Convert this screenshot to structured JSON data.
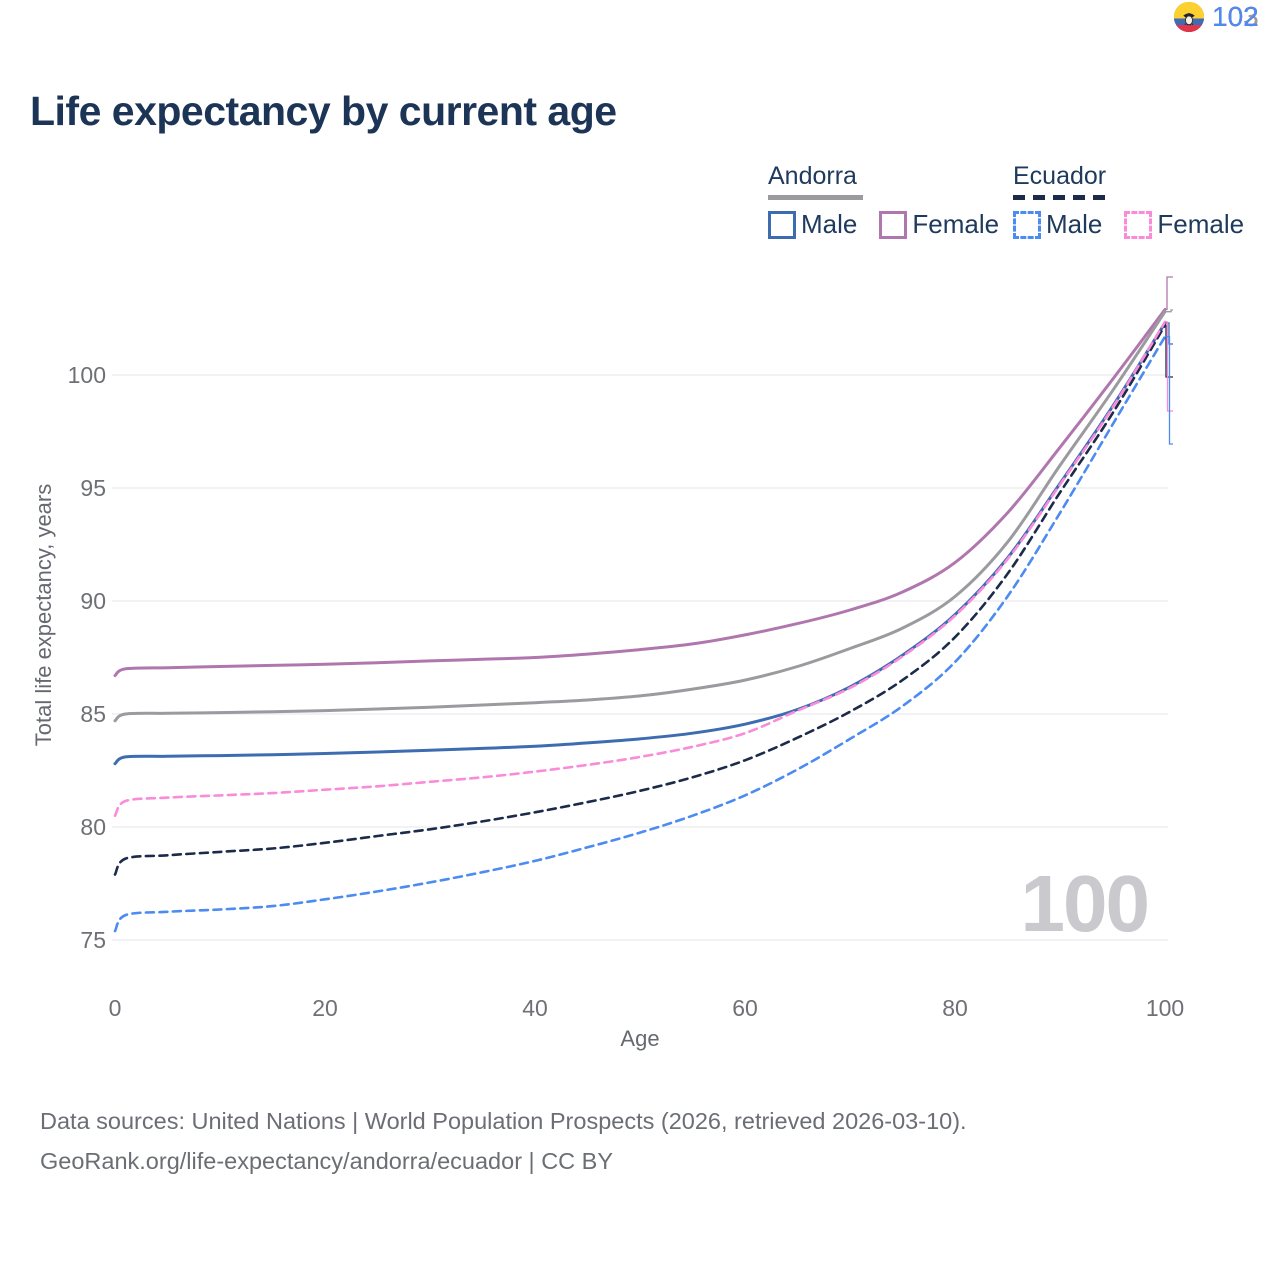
{
  "header": {
    "title": "Life expectancy by current age"
  },
  "legend": {
    "groups": [
      {
        "country": "Andorra",
        "line_style": "solid",
        "underline_color": "#9b9b9f",
        "items": [
          {
            "label": "Male",
            "color": "#3e6cb0"
          },
          {
            "label": "Female",
            "color": "#b077ae"
          }
        ]
      },
      {
        "country": "Ecuador",
        "line_style": "dashed",
        "underline_color": "#1c2b49",
        "items": [
          {
            "label": "Male",
            "color": "#4b8bf2"
          },
          {
            "label": "Female",
            "color": "#f98bd9"
          }
        ]
      }
    ]
  },
  "end_labels": [
    {
      "value": "103",
      "flag": "andorra",
      "color": "#b077ae"
    },
    {
      "value": "103",
      "flag": "andorra",
      "color": "#9b9b9f"
    },
    {
      "value": "102",
      "flag": "andorra",
      "color": "#3e6cb0"
    },
    {
      "value": "102",
      "flag": "ecuador",
      "color": "#1c2b49"
    },
    {
      "value": "102",
      "flag": "ecuador",
      "color": "#f98bd9"
    },
    {
      "value": "102",
      "flag": "ecuador",
      "color": "#4b8bf2"
    }
  ],
  "watermark": {
    "age_indicator": "100"
  },
  "colors": {
    "title": "#1c3557",
    "grid": "#e9e9ed",
    "axis_text": "#6e7076",
    "watermark": "#c9c9ce",
    "flag_andorra": [
      "#4a72b2",
      "#fcd045",
      "#d5293d"
    ],
    "flag_ecuador": [
      "#fcd12f",
      "#3f6cb5",
      "#e0354a"
    ]
  },
  "chart_data": {
    "type": "line",
    "title": "Life expectancy by current age",
    "xlabel": "Age",
    "ylabel": "Total life expectancy, years",
    "xlim": [
      0,
      100
    ],
    "ylim": [
      75,
      103
    ],
    "xticks": [
      0,
      20,
      40,
      60,
      80,
      100
    ],
    "yticks": [
      75,
      80,
      85,
      90,
      95,
      100
    ],
    "grid": "horizontal-only",
    "legend_position": "top-right",
    "series": [
      {
        "name": "Andorra Female",
        "country": "Andorra",
        "sex": "female",
        "color": "#b077ae",
        "dash": false,
        "end_label": 103,
        "points": [
          [
            0,
            86.7
          ],
          [
            1,
            87.0
          ],
          [
            5,
            87.05
          ],
          [
            10,
            87.1
          ],
          [
            15,
            87.15
          ],
          [
            20,
            87.2
          ],
          [
            25,
            87.27
          ],
          [
            30,
            87.35
          ],
          [
            35,
            87.42
          ],
          [
            40,
            87.5
          ],
          [
            45,
            87.65
          ],
          [
            50,
            87.85
          ],
          [
            55,
            88.1
          ],
          [
            60,
            88.5
          ],
          [
            65,
            89.0
          ],
          [
            70,
            89.6
          ],
          [
            75,
            90.4
          ],
          [
            80,
            91.7
          ],
          [
            85,
            93.9
          ],
          [
            90,
            96.8
          ],
          [
            95,
            99.8
          ],
          [
            100,
            102.9
          ]
        ]
      },
      {
        "name": "Andorra Both sexes",
        "country": "Andorra",
        "sex": "all",
        "color": "#9b9b9f",
        "dash": false,
        "end_label": 103,
        "points": [
          [
            0,
            84.7
          ],
          [
            1,
            85.0
          ],
          [
            5,
            85.03
          ],
          [
            10,
            85.06
          ],
          [
            15,
            85.1
          ],
          [
            20,
            85.15
          ],
          [
            25,
            85.22
          ],
          [
            30,
            85.3
          ],
          [
            35,
            85.4
          ],
          [
            40,
            85.5
          ],
          [
            45,
            85.62
          ],
          [
            50,
            85.8
          ],
          [
            55,
            86.1
          ],
          [
            60,
            86.5
          ],
          [
            65,
            87.1
          ],
          [
            70,
            87.9
          ],
          [
            75,
            88.8
          ],
          [
            80,
            90.2
          ],
          [
            85,
            92.6
          ],
          [
            90,
            96.0
          ],
          [
            95,
            99.3
          ],
          [
            100,
            102.8
          ]
        ]
      },
      {
        "name": "Andorra Male",
        "country": "Andorra",
        "sex": "male",
        "color": "#3e6cb0",
        "dash": false,
        "end_label": 102,
        "points": [
          [
            0,
            82.8
          ],
          [
            1,
            83.1
          ],
          [
            5,
            83.13
          ],
          [
            10,
            83.16
          ],
          [
            15,
            83.2
          ],
          [
            20,
            83.25
          ],
          [
            25,
            83.32
          ],
          [
            30,
            83.4
          ],
          [
            35,
            83.48
          ],
          [
            40,
            83.57
          ],
          [
            45,
            83.72
          ],
          [
            50,
            83.9
          ],
          [
            55,
            84.15
          ],
          [
            60,
            84.55
          ],
          [
            65,
            85.2
          ],
          [
            70,
            86.2
          ],
          [
            75,
            87.6
          ],
          [
            80,
            89.4
          ],
          [
            85,
            91.9
          ],
          [
            90,
            95.2
          ],
          [
            95,
            98.6
          ],
          [
            100,
            102.3
          ]
        ]
      },
      {
        "name": "Ecuador Both sexes",
        "country": "Ecuador",
        "sex": "all",
        "color": "#1c2b49",
        "dash": true,
        "end_label": 102,
        "points": [
          [
            0,
            77.9
          ],
          [
            1,
            78.6
          ],
          [
            5,
            78.75
          ],
          [
            10,
            78.9
          ],
          [
            15,
            79.05
          ],
          [
            20,
            79.3
          ],
          [
            25,
            79.6
          ],
          [
            30,
            79.9
          ],
          [
            35,
            80.25
          ],
          [
            40,
            80.65
          ],
          [
            45,
            81.1
          ],
          [
            50,
            81.6
          ],
          [
            55,
            82.2
          ],
          [
            60,
            82.95
          ],
          [
            65,
            83.95
          ],
          [
            70,
            85.1
          ],
          [
            75,
            86.5
          ],
          [
            80,
            88.4
          ],
          [
            85,
            91.2
          ],
          [
            90,
            94.8
          ],
          [
            95,
            98.3
          ],
          [
            100,
            102.2
          ]
        ]
      },
      {
        "name": "Ecuador Female",
        "country": "Ecuador",
        "sex": "female",
        "color": "#f98bd9",
        "dash": true,
        "end_label": 102,
        "points": [
          [
            0,
            80.5
          ],
          [
            1,
            81.15
          ],
          [
            5,
            81.3
          ],
          [
            10,
            81.4
          ],
          [
            15,
            81.5
          ],
          [
            20,
            81.65
          ],
          [
            25,
            81.8
          ],
          [
            30,
            82.0
          ],
          [
            35,
            82.2
          ],
          [
            40,
            82.45
          ],
          [
            45,
            82.75
          ],
          [
            50,
            83.1
          ],
          [
            55,
            83.55
          ],
          [
            60,
            84.15
          ],
          [
            65,
            85.15
          ],
          [
            70,
            86.15
          ],
          [
            75,
            87.55
          ],
          [
            80,
            89.35
          ],
          [
            85,
            91.85
          ],
          [
            90,
            95.15
          ],
          [
            95,
            98.55
          ],
          [
            100,
            102.35
          ]
        ]
      },
      {
        "name": "Ecuador Male",
        "country": "Ecuador",
        "sex": "male",
        "color": "#4b8bf2",
        "dash": true,
        "end_label": 102,
        "points": [
          [
            0,
            75.4
          ],
          [
            1,
            76.1
          ],
          [
            5,
            76.25
          ],
          [
            10,
            76.35
          ],
          [
            15,
            76.5
          ],
          [
            20,
            76.8
          ],
          [
            25,
            77.15
          ],
          [
            30,
            77.55
          ],
          [
            35,
            78.0
          ],
          [
            40,
            78.5
          ],
          [
            45,
            79.1
          ],
          [
            50,
            79.75
          ],
          [
            55,
            80.5
          ],
          [
            60,
            81.4
          ],
          [
            65,
            82.55
          ],
          [
            70,
            83.9
          ],
          [
            75,
            85.35
          ],
          [
            80,
            87.3
          ],
          [
            85,
            90.2
          ],
          [
            90,
            93.9
          ],
          [
            95,
            97.8
          ],
          [
            100,
            101.7
          ]
        ]
      }
    ]
  },
  "footer": {
    "line1": "Data sources: United Nations | World Population Prospects (2026, retrieved 2026-03-10).",
    "line2": "GeoRank.org/life-expectancy/andorra/ecuador | CC BY"
  }
}
